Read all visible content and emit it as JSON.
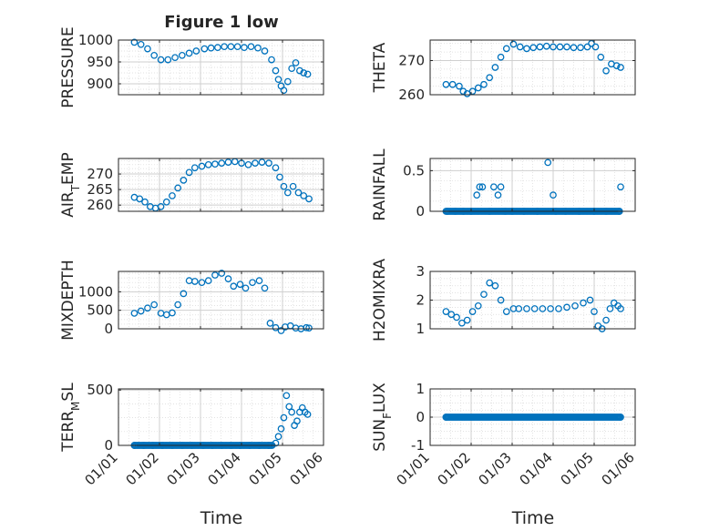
{
  "figure": {
    "title": "Figure 1 low",
    "xlabel": "Time",
    "x_ticks": [
      "01/01",
      "01/02",
      "01/03",
      "01/04",
      "01/05",
      "01/06"
    ]
  },
  "chart_data": [
    {
      "type": "scatter",
      "id": "pressure",
      "ylabel": "PRESSURE",
      "ylim": [
        875,
        1000
      ],
      "yticks": [
        900,
        950,
        1000
      ],
      "x": [
        "01/13",
        "01/18",
        "01/23",
        "01/28",
        "02/02",
        "02/07",
        "02/12",
        "02/17",
        "02/22",
        "02/27",
        "03/04",
        "03/09",
        "03/14",
        "03/19",
        "03/24",
        "03/29",
        "04/03",
        "04/08",
        "04/13",
        "04/18",
        "04/23",
        "04/26",
        "04/28",
        "04/30",
        "05/02",
        "05/05",
        "05/08",
        "05/11",
        "05/14",
        "05/17",
        "05/20"
      ],
      "y": [
        995,
        990,
        980,
        965,
        955,
        955,
        960,
        965,
        970,
        975,
        980,
        982,
        983,
        985,
        985,
        985,
        983,
        985,
        982,
        975,
        955,
        930,
        910,
        895,
        885,
        905,
        935,
        948,
        930,
        925,
        922
      ]
    },
    {
      "type": "scatter",
      "id": "theta",
      "ylabel": "THETA",
      "ylim": [
        260,
        276
      ],
      "yticks": [
        260,
        270
      ],
      "x": [
        "01/13",
        "01/18",
        "01/23",
        "01/26",
        "01/29",
        "02/02",
        "02/06",
        "02/10",
        "02/14",
        "02/18",
        "02/22",
        "02/26",
        "03/02",
        "03/07",
        "03/12",
        "03/17",
        "03/22",
        "03/27",
        "04/01",
        "04/06",
        "04/11",
        "04/16",
        "04/21",
        "04/26",
        "04/29",
        "05/02",
        "05/06",
        "05/10",
        "05/14",
        "05/18",
        "05/21"
      ],
      "y": [
        263,
        263,
        262.5,
        261,
        260.3,
        261,
        262,
        263,
        265,
        268,
        271,
        273.5,
        274.8,
        274,
        273.5,
        273.8,
        274,
        274.2,
        274,
        274,
        274,
        273.8,
        273.8,
        274,
        275,
        274,
        271,
        267,
        269,
        268.5,
        268
      ]
    },
    {
      "type": "scatter",
      "id": "air_temp",
      "ylabel": "AIR_TEMP",
      "ylim": [
        258,
        275
      ],
      "yticks": [
        260,
        265,
        270
      ],
      "x": [
        "01/13",
        "01/17",
        "01/21",
        "01/25",
        "01/29",
        "02/02",
        "02/06",
        "02/10",
        "02/14",
        "02/18",
        "02/22",
        "02/26",
        "03/02",
        "03/07",
        "03/12",
        "03/17",
        "03/22",
        "03/27",
        "04/01",
        "04/06",
        "04/11",
        "04/16",
        "04/21",
        "04/26",
        "04/29",
        "05/02",
        "05/05",
        "05/09",
        "05/13",
        "05/17",
        "05/21"
      ],
      "y": [
        262.5,
        262,
        261,
        259.5,
        259,
        259.5,
        261,
        263,
        265.5,
        268,
        270.5,
        272,
        272.5,
        273,
        273.2,
        273.5,
        273.8,
        274,
        273.5,
        273,
        273.5,
        273.8,
        273.5,
        272,
        269,
        266,
        264,
        266,
        264,
        263,
        262
      ]
    },
    {
      "type": "scatter",
      "id": "rainfall",
      "ylabel": "RAINFALL",
      "ylim": [
        0,
        0.65
      ],
      "yticks": [
        0,
        0.5
      ],
      "x": [
        "01/14",
        "01/20",
        "01/26",
        "02/01",
        "02/05",
        "02/07",
        "02/09",
        "02/14",
        "02/17",
        "02/20",
        "02/22",
        "02/25",
        "03/01",
        "03/10",
        "03/20",
        "03/28",
        "04/01",
        "04/03",
        "04/10",
        "04/20",
        "05/01",
        "05/10",
        "05/20",
        "05/21"
      ],
      "y": [
        0,
        0,
        0,
        0,
        0.2,
        0.3,
        0.3,
        0,
        0.3,
        0.2,
        0.3,
        0,
        0,
        0,
        0,
        0.6,
        0.2,
        0,
        0,
        0,
        0,
        0,
        0,
        0.3
      ]
    },
    {
      "type": "scatter",
      "id": "mixdepth",
      "ylabel": "MIXDEPTH",
      "ylim": [
        0,
        1550
      ],
      "yticks": [
        0,
        500,
        1000
      ],
      "x": [
        "01/13",
        "01/18",
        "01/23",
        "01/28",
        "02/02",
        "02/06",
        "02/10",
        "02/14",
        "02/18",
        "02/22",
        "02/26",
        "03/02",
        "03/07",
        "03/12",
        "03/17",
        "03/22",
        "03/26",
        "03/31",
        "04/04",
        "04/09",
        "04/14",
        "04/18",
        "04/22",
        "04/26",
        "04/30",
        "05/03",
        "05/07",
        "05/11",
        "05/15",
        "05/19",
        "05/21"
      ],
      "y": [
        420,
        480,
        560,
        650,
        420,
        380,
        430,
        650,
        950,
        1300,
        1280,
        1250,
        1300,
        1450,
        1500,
        1350,
        1150,
        1200,
        1100,
        1250,
        1300,
        1100,
        150,
        30,
        -50,
        50,
        80,
        20,
        0,
        30,
        20
      ]
    },
    {
      "type": "scatter",
      "id": "h2omixra",
      "ylabel": "H2OMIXRA",
      "ylim": [
        1,
        3
      ],
      "yticks": [
        1,
        2,
        3
      ],
      "x": [
        "01/13",
        "01/17",
        "01/21",
        "01/25",
        "01/29",
        "02/02",
        "02/06",
        "02/10",
        "02/14",
        "02/18",
        "02/22",
        "02/26",
        "03/02",
        "03/06",
        "03/12",
        "03/18",
        "03/24",
        "03/30",
        "04/05",
        "04/11",
        "04/17",
        "04/23",
        "04/28",
        "05/01",
        "05/04",
        "05/07",
        "05/10",
        "05/13",
        "05/16",
        "05/19",
        "05/21"
      ],
      "y": [
        1.6,
        1.5,
        1.4,
        1.2,
        1.3,
        1.6,
        1.8,
        2.2,
        2.6,
        2.5,
        2.0,
        1.6,
        1.7,
        1.7,
        1.7,
        1.7,
        1.7,
        1.7,
        1.7,
        1.75,
        1.8,
        1.9,
        2.0,
        1.6,
        1.1,
        1.0,
        1.3,
        1.7,
        1.9,
        1.8,
        1.7
      ]
    },
    {
      "type": "scatter",
      "id": "terr_msl",
      "ylabel": "TERR_MSL",
      "ylim": [
        0,
        510
      ],
      "yticks": [
        0,
        500
      ],
      "x": [
        "01/13",
        "01/20",
        "01/27",
        "02/03",
        "02/10",
        "02/17",
        "02/24",
        "03/03",
        "03/10",
        "03/17",
        "03/24",
        "03/31",
        "04/07",
        "04/14",
        "04/21",
        "04/26",
        "04/28",
        "04/30",
        "05/02",
        "05/04",
        "05/06",
        "05/08",
        "05/10",
        "05/12",
        "05/14",
        "05/16",
        "05/18",
        "05/20"
      ],
      "y": [
        0,
        0,
        0,
        0,
        0,
        0,
        0,
        0,
        0,
        0,
        0,
        0,
        0,
        0,
        0,
        20,
        80,
        150,
        250,
        450,
        350,
        300,
        180,
        220,
        300,
        340,
        300,
        280
      ]
    },
    {
      "type": "scatter",
      "id": "sun_flux",
      "ylabel": "SUN_FLUX",
      "ylim": [
        -1,
        1
      ],
      "yticks": [
        -1,
        0,
        1
      ],
      "x": [
        "01/13",
        "05/21"
      ],
      "y": [
        0,
        0
      ]
    }
  ]
}
